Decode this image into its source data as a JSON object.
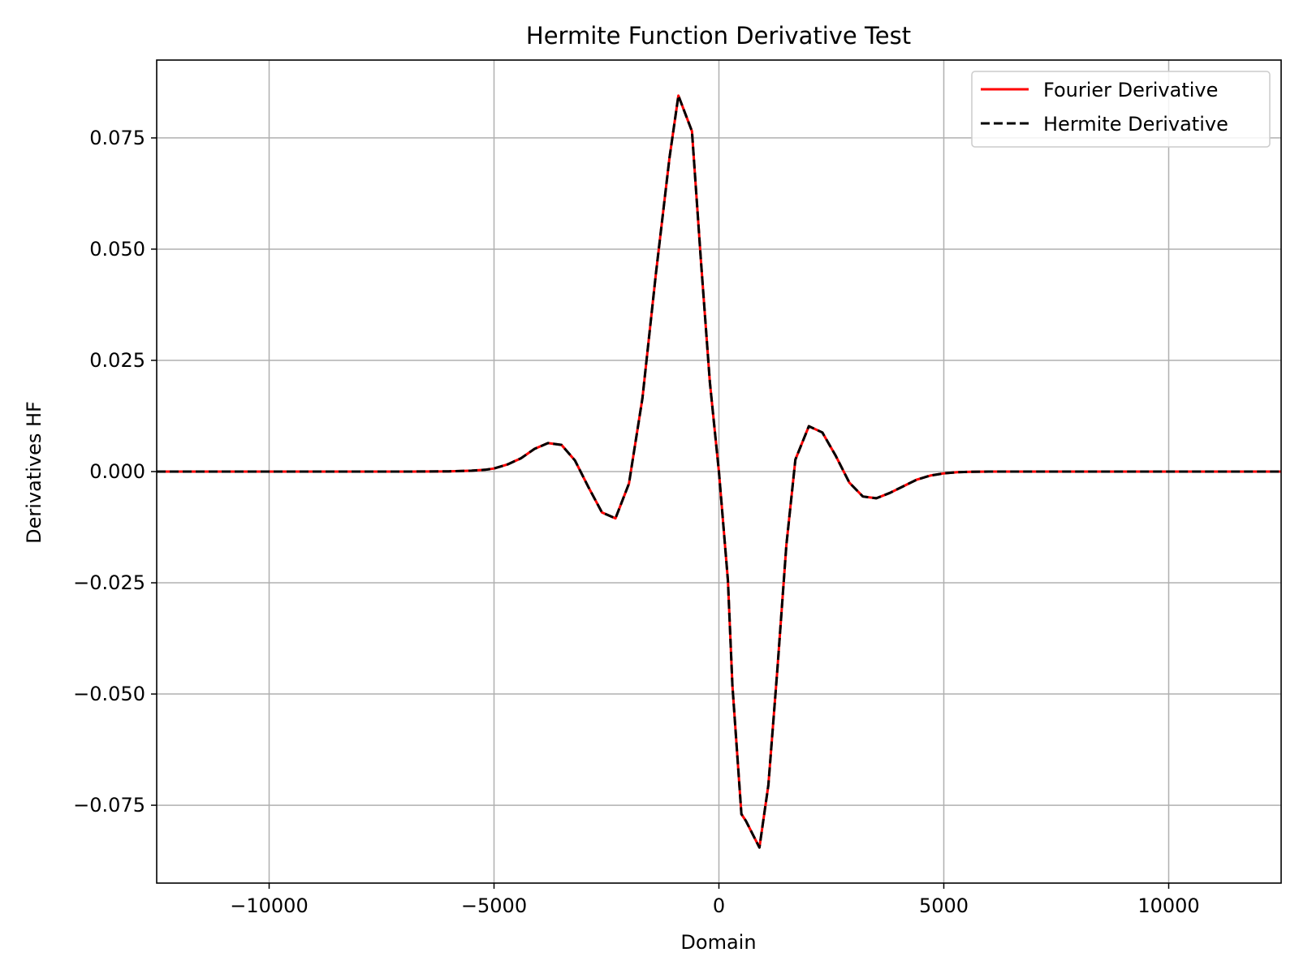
{
  "chart_data": {
    "type": "line",
    "title": "Hermite Function Derivative Test",
    "xlabel": "Domain",
    "ylabel": "Derivatives HF",
    "xlim": [
      -12500,
      12500
    ],
    "ylim": [
      -0.0925,
      0.0925
    ],
    "x_ticks": [
      -10000,
      -5000,
      0,
      5000,
      10000
    ],
    "x_tick_labels": [
      "−10000",
      "−5000",
      "0",
      "5000",
      "10000"
    ],
    "y_ticks": [
      0.075,
      0.05,
      0.025,
      0.0,
      -0.025,
      -0.05,
      -0.075
    ],
    "y_tick_labels": [
      "0.075",
      "0.050",
      "0.025",
      "0.000",
      "−0.025",
      "−0.050",
      "−0.075"
    ],
    "grid": true,
    "legend_position": "top-right",
    "x": [
      -12500,
      -11000,
      -9000,
      -7000,
      -6000,
      -5500,
      -5200,
      -5000,
      -4700,
      -4400,
      -4100,
      -3800,
      -3500,
      -3200,
      -2900,
      -2600,
      -2300,
      -2000,
      -1700,
      -1400,
      -1100,
      -900,
      -600,
      -400,
      -200,
      0,
      200,
      300,
      500,
      600,
      900,
      1100,
      1300,
      1500,
      1700,
      2000,
      2300,
      2600,
      2900,
      3200,
      3500,
      3800,
      4100,
      4400,
      4700,
      5000,
      5300,
      5600,
      6000,
      7000,
      9000,
      11000,
      12500
    ],
    "series": [
      {
        "name": "Fourier Derivative",
        "color": "#ff0000",
        "style": "solid",
        "values": [
          0,
          0,
          0,
          0,
          5e-05,
          0.0002,
          0.0004,
          0.0007,
          0.0016,
          0.003,
          0.0051,
          0.0064,
          0.006,
          0.0025,
          -0.0035,
          -0.0092,
          -0.0105,
          -0.0027,
          0.0165,
          0.0445,
          0.0705,
          0.0845,
          0.0765,
          0.0475,
          0.02,
          0.0,
          -0.0245,
          -0.048,
          -0.077,
          -0.0785,
          -0.0845,
          -0.0705,
          -0.0445,
          -0.0165,
          0.0027,
          0.0102,
          0.0088,
          0.0035,
          -0.0025,
          -0.0056,
          -0.006,
          -0.0048,
          -0.0033,
          -0.0018,
          -0.0009,
          -0.0004,
          -0.00015,
          -5e-05,
          0,
          0,
          0,
          0,
          0
        ]
      },
      {
        "name": "Hermite Derivative",
        "color": "#000000",
        "style": "dashed",
        "values": [
          0,
          0,
          0,
          0,
          5e-05,
          0.0002,
          0.0004,
          0.0007,
          0.0016,
          0.003,
          0.0051,
          0.0064,
          0.006,
          0.0025,
          -0.0035,
          -0.0092,
          -0.0105,
          -0.0027,
          0.0165,
          0.0445,
          0.0705,
          0.0845,
          0.0765,
          0.0475,
          0.02,
          0.0,
          -0.0245,
          -0.048,
          -0.077,
          -0.0785,
          -0.0845,
          -0.0705,
          -0.0445,
          -0.0165,
          0.0027,
          0.0102,
          0.0088,
          0.0035,
          -0.0025,
          -0.0056,
          -0.006,
          -0.0048,
          -0.0033,
          -0.0018,
          -0.0009,
          -0.0004,
          -0.00015,
          -5e-05,
          0,
          0,
          0,
          0,
          0
        ]
      }
    ]
  }
}
